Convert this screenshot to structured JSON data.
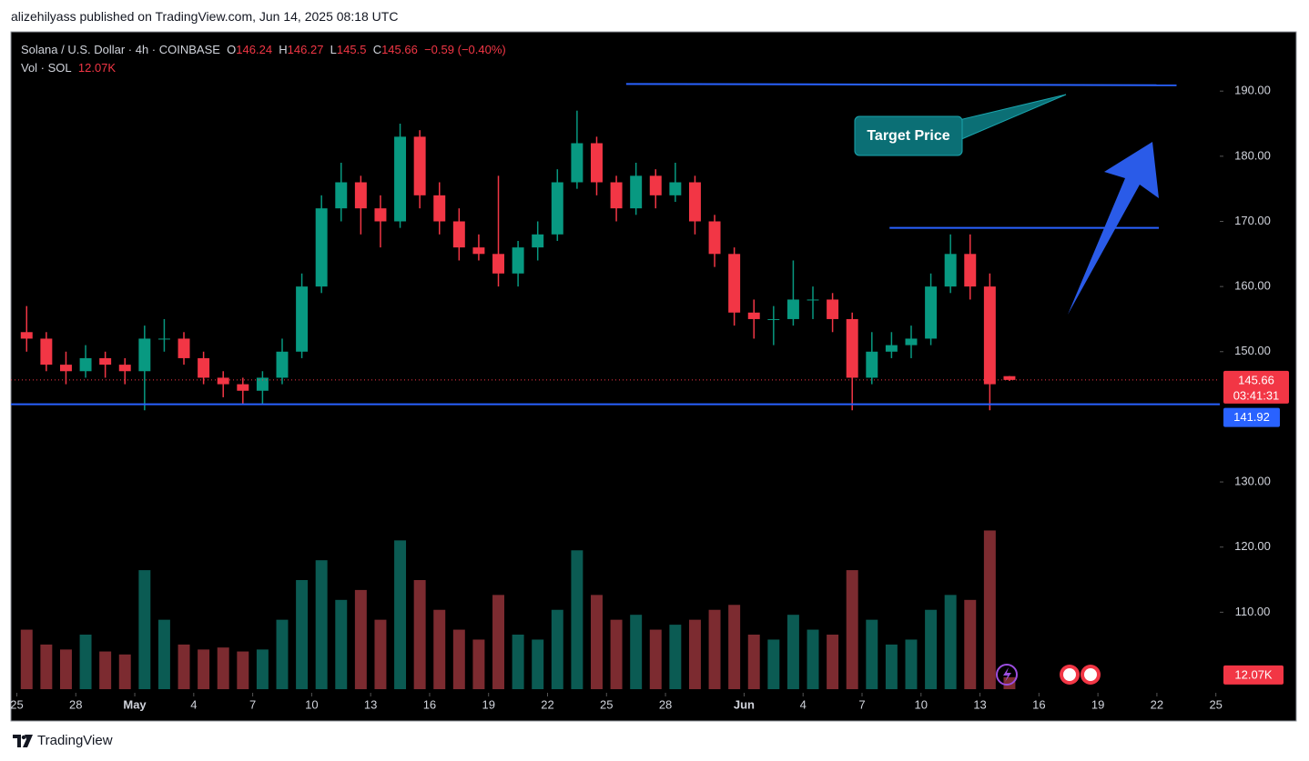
{
  "header": {
    "text": "alizehilyass published on TradingView.com, Jun 14, 2025 08:18 UTC"
  },
  "footer": {
    "brand": "TradingView"
  },
  "chart_data": {
    "type": "candlestick",
    "title": "Solana / U.S. Dollar · 4h · COINBASE",
    "ohlc_letters": {
      "open": "O",
      "high": "H",
      "low": "L",
      "close": "C"
    },
    "change": {
      "value": -0.59,
      "label": "−0.59"
    },
    "change_pct": {
      "value": -0.4,
      "label": "(−0.40%)"
    },
    "volume_title": "Vol · SOL",
    "countdown": "03:41:31",
    "annotation": "Target Price",
    "up_color": "#089981",
    "down_color": "#f23645",
    "volume_up_color": "#0b5b53",
    "volume_down_color": "#7c2b30",
    "line_color": "#2962ff",
    "x": [
      0.5,
      1.5,
      2.5,
      3.5,
      4.5,
      5.5,
      6.5,
      7.5,
      8.5,
      9.5,
      10.5,
      11.5,
      12.5,
      13.5,
      14.5,
      15.5,
      16.5,
      17.5,
      18.5,
      19.5,
      20.5,
      21.5,
      22.5,
      23.5,
      24.5,
      25.5,
      26.5,
      27.5,
      28.5,
      29.5,
      30.5,
      31.5,
      32.5,
      33.5,
      34.5,
      35.5,
      36.5,
      37.5,
      38.5,
      39.5,
      40.5,
      41.5,
      42.5,
      43.5,
      44.5,
      45.5,
      46.5,
      47.5,
      48.5,
      49.5,
      50.5
    ],
    "open": [
      153,
      152,
      148,
      147,
      149,
      148,
      147,
      152,
      152,
      149,
      146,
      145,
      144,
      146,
      150,
      160,
      172,
      176,
      172,
      170,
      183,
      174,
      170,
      166,
      165,
      162,
      166,
      168,
      176,
      182,
      176,
      172,
      177,
      174,
      176,
      170,
      165,
      156,
      155,
      155,
      158,
      158,
      155,
      146,
      150,
      151,
      152,
      160,
      165,
      160,
      146.24
    ],
    "high": [
      157,
      153,
      150,
      151,
      150,
      149,
      154,
      155,
      153,
      150,
      147,
      146,
      147,
      152,
      162,
      174,
      179,
      177,
      174,
      185,
      184,
      176,
      172,
      168,
      177,
      167,
      170,
      178,
      187,
      183,
      177,
      179,
      178,
      179,
      177,
      171,
      166,
      158,
      157,
      164,
      160,
      159,
      156,
      153,
      153,
      154,
      162,
      168,
      168,
      162,
      146.27
    ],
    "low": [
      150,
      147,
      145,
      146,
      146,
      145,
      141,
      150,
      148,
      145,
      143,
      142,
      142,
      145,
      149,
      159,
      170,
      168,
      166,
      169,
      172,
      168,
      164,
      164,
      160,
      160,
      164,
      167,
      175,
      174,
      170,
      171,
      172,
      173,
      168,
      163,
      154,
      152,
      151,
      154,
      155,
      153,
      141,
      145,
      149,
      149,
      151,
      159,
      158,
      141,
      145.5
    ],
    "close": [
      152,
      148,
      147,
      149,
      148,
      147,
      152,
      152,
      149,
      146,
      145,
      144,
      146,
      150,
      160,
      172,
      176,
      172,
      170,
      183,
      174,
      170,
      166,
      165,
      162,
      166,
      168,
      176,
      182,
      176,
      172,
      177,
      174,
      176,
      170,
      165,
      156,
      155,
      155,
      158,
      158,
      155,
      146,
      150,
      151,
      152,
      160,
      165,
      160,
      145,
      145.66
    ],
    "volume": [
      60,
      45,
      40,
      55,
      38,
      35,
      120,
      70,
      45,
      40,
      42,
      38,
      40,
      70,
      110,
      130,
      90,
      100,
      70,
      150,
      110,
      80,
      60,
      50,
      95,
      55,
      50,
      80,
      140,
      95,
      70,
      75,
      60,
      65,
      70,
      80,
      85,
      55,
      50,
      75,
      60,
      55,
      120,
      70,
      45,
      50,
      80,
      95,
      90,
      160,
      12.07
    ],
    "volume_value_labels": [
      null,
      null,
      null,
      null,
      null,
      null,
      null,
      null,
      null,
      null,
      null,
      null,
      null,
      null,
      null,
      null,
      null,
      null,
      null,
      null,
      null,
      null,
      null,
      null,
      null,
      null,
      null,
      null,
      null,
      null,
      null,
      null,
      null,
      null,
      null,
      null,
      null,
      null,
      null,
      null,
      null,
      null,
      null,
      null,
      null,
      null,
      null,
      null,
      null,
      null,
      "12.07K"
    ],
    "vlim": [
      0,
      220
    ],
    "xlim": [
      -0.3,
      61.2
    ],
    "ylim": [
      93.3,
      199.1
    ],
    "xticks": [
      {
        "value": 0,
        "label": "25"
      },
      {
        "value": 3,
        "label": "28"
      },
      {
        "value": 6,
        "label": "May"
      },
      {
        "value": 9,
        "label": "4"
      },
      {
        "value": 12,
        "label": "7"
      },
      {
        "value": 15,
        "label": "10"
      },
      {
        "value": 18,
        "label": "13"
      },
      {
        "value": 21,
        "label": "16"
      },
      {
        "value": 24,
        "label": "19"
      },
      {
        "value": 27,
        "label": "22"
      },
      {
        "value": 30,
        "label": "25"
      },
      {
        "value": 33,
        "label": "28"
      },
      {
        "value": 37,
        "label": "Jun"
      },
      {
        "value": 40,
        "label": "4"
      },
      {
        "value": 43,
        "label": "7"
      },
      {
        "value": 46,
        "label": "10"
      },
      {
        "value": 49,
        "label": "13"
      },
      {
        "value": 52,
        "label": "16"
      },
      {
        "value": 55,
        "label": "19"
      },
      {
        "value": 58,
        "label": "22"
      },
      {
        "value": 61,
        "label": "25"
      }
    ],
    "yticks": [
      {
        "value": 110,
        "label": "110.00"
      },
      {
        "value": 120,
        "label": "120.00"
      },
      {
        "value": 130,
        "label": "130.00"
      },
      {
        "value": 150,
        "label": "150.00"
      },
      {
        "value": 160,
        "label": "160.00"
      },
      {
        "value": 170,
        "label": "170.00"
      },
      {
        "value": 180,
        "label": "180.00"
      },
      {
        "value": 190,
        "label": "190.00"
      }
    ],
    "drawings": [
      {
        "x": [
          -0.3,
          61.2
        ],
        "y": [
          141.92,
          141.92
        ]
      },
      {
        "x": [
          44.4,
          58.1
        ],
        "y": [
          169,
          169
        ]
      },
      {
        "x": [
          31,
          59
        ],
        "y": [
          191.1,
          190.9
        ]
      }
    ]
  }
}
